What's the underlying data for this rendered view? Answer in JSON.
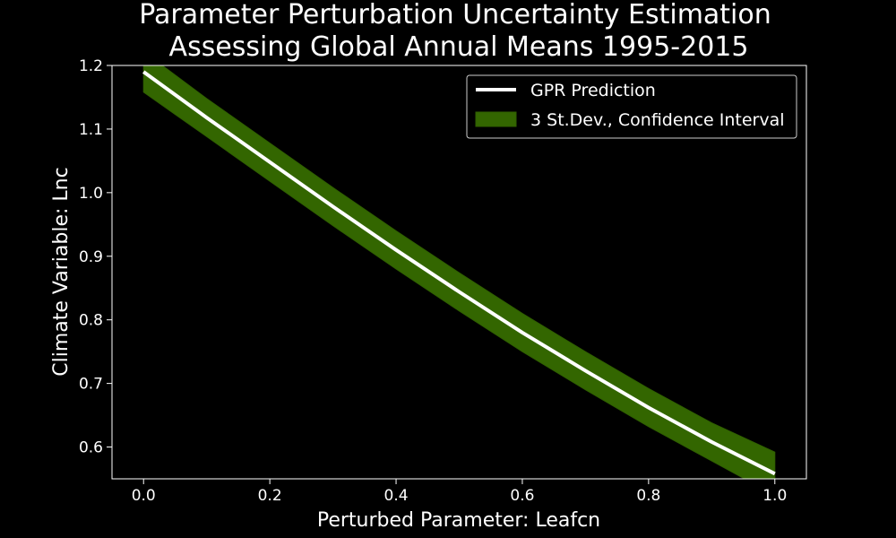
{
  "chart_data": {
    "type": "line",
    "title_lines": [
      "Parameter Perturbation Uncertainty Estimation",
      "Assessing Global Annual Means 1995-2015"
    ],
    "xlabel": "Perturbed Parameter: Leafcn",
    "ylabel": "Climate Variable: Lnc",
    "xlim": [
      -0.05,
      1.05
    ],
    "ylim": [
      0.55,
      1.2
    ],
    "xticks": [
      0.0,
      0.2,
      0.4,
      0.6,
      0.8,
      1.0
    ],
    "xtick_labels": [
      "0.0",
      "0.2",
      "0.4",
      "0.6",
      "0.8",
      "1.0"
    ],
    "yticks": [
      0.6,
      0.7,
      0.8,
      0.9,
      1.0,
      1.1,
      1.2
    ],
    "ytick_labels": [
      "0.6",
      "0.7",
      "0.8",
      "0.9",
      "1.0",
      "1.1",
      "1.2"
    ],
    "grid": false,
    "legend_position": "top-right",
    "x": [
      0.0,
      0.1,
      0.2,
      0.3,
      0.4,
      0.5,
      0.6,
      0.7,
      0.8,
      0.9,
      1.0
    ],
    "series": [
      {
        "name": "GPR Prediction",
        "kind": "line",
        "color": "#ffffff",
        "values": [
          1.19,
          1.118,
          1.048,
          0.978,
          0.91,
          0.844,
          0.78,
          0.72,
          0.662,
          0.608,
          0.558
        ]
      },
      {
        "name": "3 St.Dev., Confidence Interval",
        "kind": "band",
        "color": "#336600",
        "lower": [
          1.158,
          1.088,
          1.018,
          0.948,
          0.88,
          0.814,
          0.75,
          0.69,
          0.632,
          0.578,
          0.524
        ],
        "upper": [
          1.222,
          1.148,
          1.078,
          1.008,
          0.94,
          0.874,
          0.81,
          0.75,
          0.692,
          0.638,
          0.592
        ]
      }
    ]
  }
}
